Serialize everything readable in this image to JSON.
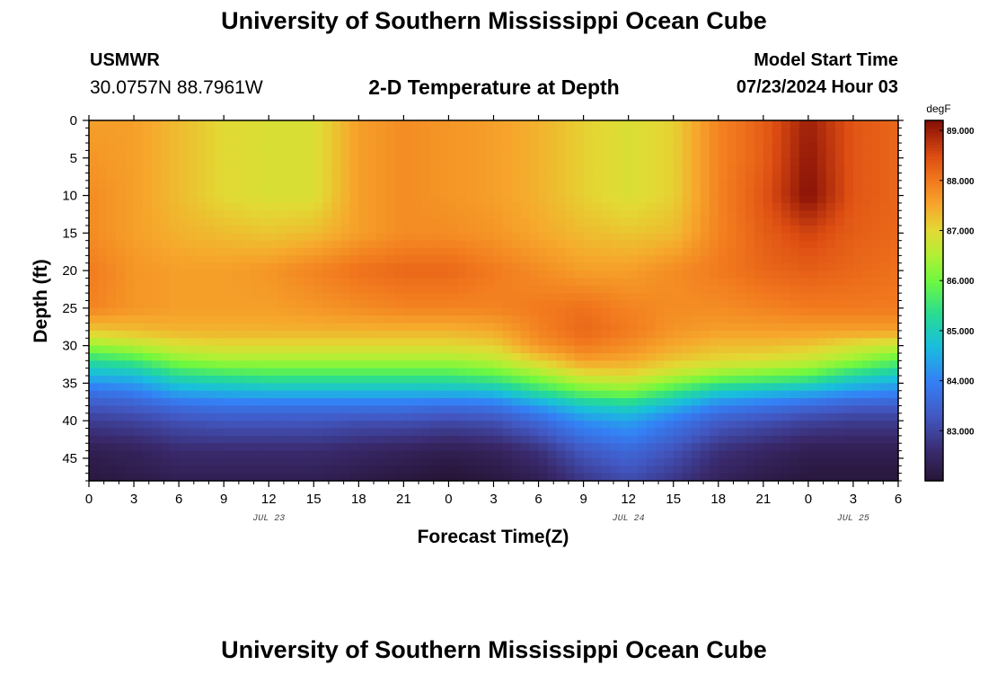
{
  "header": {
    "title": "University of Southern Mississippi Ocean Cube",
    "station": "USMWR",
    "coords": "30.0757N  88.7961W",
    "plot_title": "2-D Temperature at Depth",
    "model_start_label": "Model Start Time",
    "model_start_value": "07/23/2024 Hour 03"
  },
  "footer": {
    "title": "University of Southern Mississippi Ocean Cube"
  },
  "chart_data": {
    "type": "heatmap",
    "title": "2-D Temperature at Depth",
    "xlabel": "Forecast Time(Z)",
    "ylabel": "Depth (ft)",
    "x_unit": "hours since JUL 23 00Z",
    "xlim": [
      0,
      54
    ],
    "ylim": [
      48,
      0
    ],
    "x_ticks": [
      0,
      3,
      6,
      9,
      12,
      15,
      18,
      21,
      24,
      27,
      30,
      33,
      36,
      39,
      42,
      45,
      48,
      51,
      54
    ],
    "x_tick_labels": [
      "0",
      "3",
      "6",
      "9",
      "12",
      "15",
      "18",
      "21",
      "0",
      "3",
      "6",
      "9",
      "12",
      "15",
      "18",
      "21",
      "0",
      "3",
      "6"
    ],
    "y_ticks": [
      0,
      5,
      10,
      15,
      20,
      25,
      30,
      35,
      40,
      45
    ],
    "y_tick_labels": [
      "0",
      "5",
      "10",
      "15",
      "20",
      "25",
      "30",
      "35",
      "40",
      "45"
    ],
    "date_labels": [
      {
        "x": 12,
        "label": "JUL 23"
      },
      {
        "x": 36,
        "label": "JUL 24"
      },
      {
        "x": 51,
        "label": "JUL 25"
      }
    ],
    "colorbar": {
      "unit": "degF",
      "min": 82.0,
      "max": 89.2,
      "ticks": [
        83,
        84,
        85,
        86,
        87,
        88,
        89
      ],
      "tick_labels": [
        "83.000",
        "84.000",
        "85.000",
        "86.000",
        "87.000",
        "88.000",
        "89.000"
      ]
    },
    "grid_x": [
      0,
      3,
      6,
      9,
      12,
      15,
      18,
      21,
      24,
      27,
      30,
      33,
      36,
      39,
      42,
      45,
      48,
      51,
      54
    ],
    "grid_depth": [
      0,
      5,
      10,
      15,
      20,
      25,
      28,
      30,
      32,
      34,
      36,
      38,
      40,
      44,
      48
    ],
    "values": [
      [
        87.6,
        87.6,
        87.3,
        87.0,
        86.9,
        86.9,
        87.6,
        87.8,
        87.7,
        87.6,
        87.4,
        87.1,
        86.9,
        87.1,
        87.9,
        88.3,
        89.0,
        88.4,
        88.2
      ],
      [
        87.7,
        87.6,
        87.3,
        87.0,
        86.9,
        86.9,
        87.6,
        87.8,
        87.7,
        87.6,
        87.4,
        87.1,
        86.9,
        87.1,
        87.9,
        88.3,
        89.1,
        88.4,
        88.2
      ],
      [
        87.8,
        87.6,
        87.3,
        87.0,
        86.9,
        86.9,
        87.6,
        87.8,
        87.7,
        87.6,
        87.4,
        87.1,
        86.9,
        87.1,
        87.9,
        88.4,
        89.2,
        88.4,
        88.2
      ],
      [
        87.8,
        87.6,
        87.4,
        87.3,
        87.2,
        87.3,
        87.6,
        87.8,
        87.8,
        87.7,
        87.5,
        87.3,
        87.2,
        87.3,
        87.9,
        88.3,
        88.6,
        88.3,
        88.2
      ],
      [
        88.0,
        87.7,
        87.6,
        87.6,
        87.7,
        87.9,
        88.1,
        88.2,
        88.2,
        88.0,
        87.8,
        87.6,
        87.6,
        87.8,
        88.0,
        88.2,
        88.3,
        88.2,
        88.1
      ],
      [
        87.9,
        87.7,
        87.6,
        87.6,
        87.6,
        87.7,
        87.8,
        87.9,
        87.9,
        87.9,
        88.0,
        88.1,
        87.9,
        87.8,
        87.8,
        87.9,
        88.0,
        88.0,
        88.0
      ],
      [
        87.2,
        87.3,
        87.4,
        87.4,
        87.4,
        87.4,
        87.4,
        87.4,
        87.4,
        87.5,
        87.9,
        88.2,
        88.0,
        87.7,
        87.6,
        87.6,
        87.6,
        87.6,
        87.6
      ],
      [
        86.3,
        86.6,
        86.9,
        87.0,
        87.0,
        87.0,
        87.0,
        87.0,
        87.0,
        87.1,
        87.7,
        88.0,
        87.8,
        87.5,
        87.3,
        87.3,
        87.2,
        86.9,
        86.7
      ],
      [
        85.3,
        85.6,
        86.2,
        86.4,
        86.4,
        86.4,
        86.4,
        86.4,
        86.4,
        86.6,
        87.1,
        87.6,
        87.5,
        87.2,
        87.0,
        86.9,
        86.7,
        86.3,
        85.8
      ],
      [
        84.6,
        84.7,
        85.3,
        85.5,
        85.6,
        85.6,
        85.6,
        85.6,
        85.6,
        85.8,
        86.3,
        86.9,
        87.0,
        86.6,
        86.2,
        86.0,
        85.8,
        85.2,
        84.9
      ],
      [
        83.8,
        84.0,
        84.5,
        84.6,
        84.7,
        84.7,
        84.7,
        84.7,
        84.7,
        84.8,
        85.4,
        86.0,
        86.2,
        85.6,
        85.0,
        84.8,
        84.6,
        84.3,
        84.1
      ],
      [
        83.3,
        83.4,
        83.7,
        83.8,
        83.8,
        83.8,
        83.8,
        83.8,
        83.7,
        83.8,
        84.3,
        84.9,
        85.1,
        84.6,
        84.0,
        83.8,
        83.6,
        83.4,
        83.4
      ],
      [
        82.9,
        83.0,
        83.2,
        83.3,
        83.3,
        83.3,
        83.2,
        83.2,
        83.1,
        83.2,
        83.6,
        84.2,
        84.4,
        83.9,
        83.4,
        83.2,
        83.0,
        82.9,
        82.9
      ],
      [
        82.3,
        82.4,
        82.6,
        82.6,
        82.6,
        82.6,
        82.5,
        82.4,
        82.3,
        82.4,
        82.7,
        83.3,
        83.6,
        83.2,
        82.7,
        82.5,
        82.3,
        82.3,
        82.3
      ],
      [
        82.1,
        82.2,
        82.3,
        82.3,
        82.3,
        82.3,
        82.2,
        82.1,
        82.0,
        82.1,
        82.3,
        82.8,
        83.1,
        82.8,
        82.4,
        82.2,
        82.1,
        82.1,
        82.1
      ]
    ]
  }
}
